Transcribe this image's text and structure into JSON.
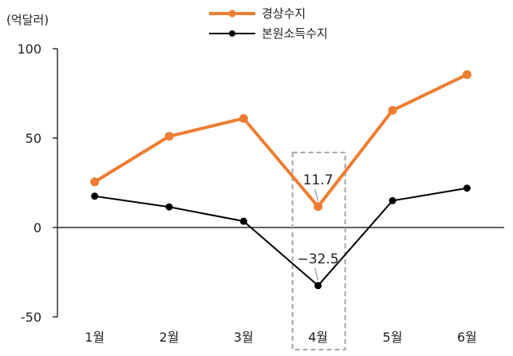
{
  "chart_data": {
    "type": "line",
    "unit_label": "(억달러)",
    "categories": [
      "1월",
      "2월",
      "3월",
      "4월",
      "5월",
      "6월"
    ],
    "ylim": [
      -50,
      100
    ],
    "yticks": [
      -50,
      0,
      50,
      100
    ],
    "series": [
      {
        "name": "경상수지",
        "color": "#ED7D31",
        "values": [
          25.5,
          51,
          61,
          11.7,
          65.5,
          85.5
        ]
      },
      {
        "name": "본원소득수지",
        "color": "#000000",
        "values": [
          17.5,
          11.5,
          3.5,
          -32.5,
          15,
          22
        ]
      }
    ],
    "annotations": [
      {
        "category": "4월",
        "series": "경상수지",
        "text": "11.7"
      },
      {
        "category": "4월",
        "series": "본원소득수지",
        "text": "−32.5"
      }
    ],
    "highlight": {
      "category": "4월",
      "style": "dashed-box"
    },
    "legend_position": "top-center",
    "grid": false
  }
}
